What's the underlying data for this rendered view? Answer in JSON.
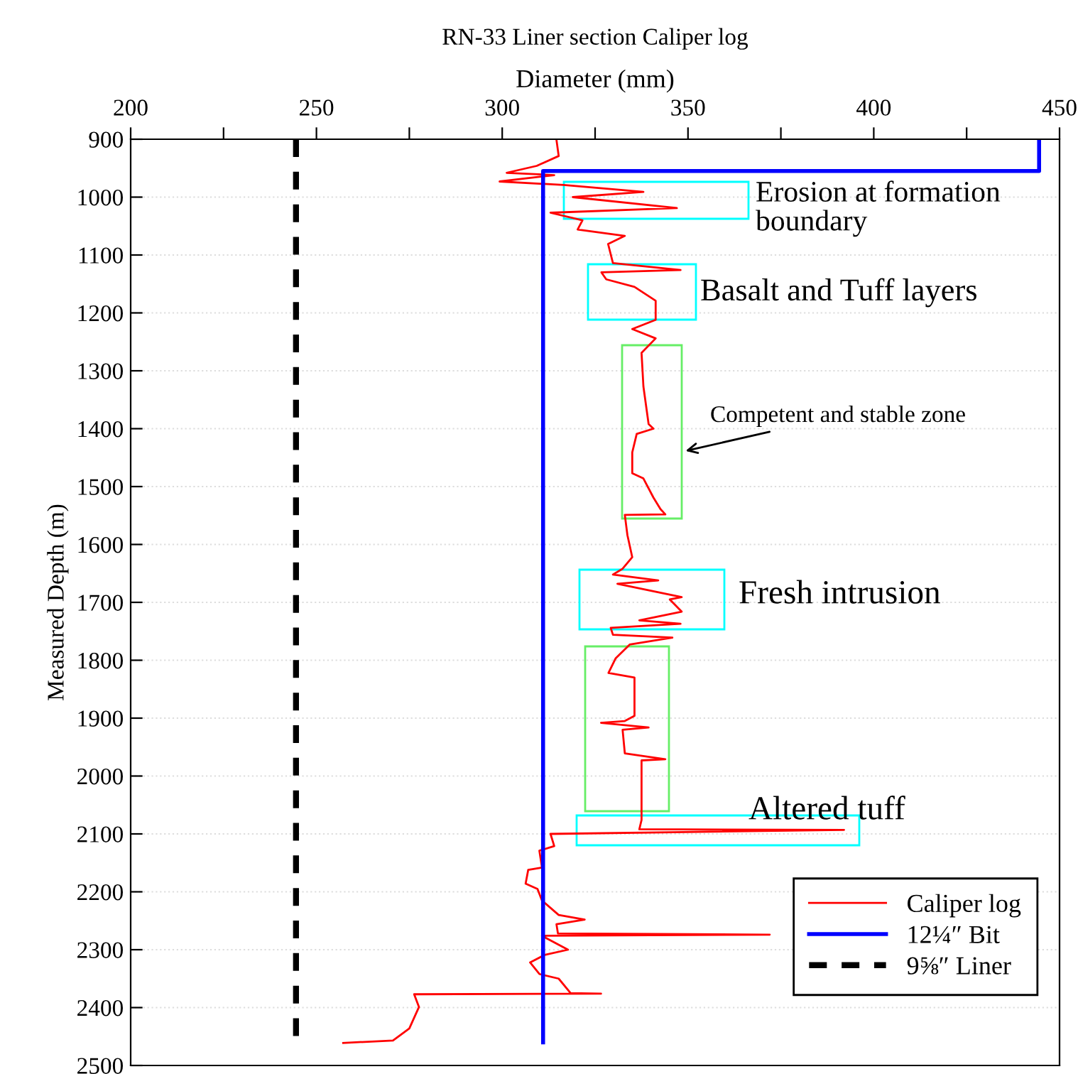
{
  "chart_data": {
    "type": "line",
    "title": "RN-33 Liner section Caliper log",
    "xlabel": "Diameter (mm)",
    "ylabel": "Measured Depth (m)",
    "xlim": [
      200,
      450
    ],
    "xticks": [
      200,
      {
        "value": 225,
        "label": null
      },
      250,
      {
        "value": 275,
        "label": null
      },
      300,
      {
        "value": 325,
        "label": null
      },
      350,
      {
        "value": 375,
        "label": null
      },
      400,
      {
        "value": 425,
        "label": null
      },
      450
    ],
    "ylim": [
      2500,
      900
    ],
    "yticks": [
      900,
      1000,
      1100,
      1200,
      1300,
      1400,
      1500,
      1600,
      1700,
      1800,
      1900,
      2000,
      2100,
      2200,
      2300,
      2400,
      2500
    ],
    "grid": "y",
    "legend": "bottom right",
    "series": [
      {
        "name": "Caliper log",
        "color": "#ff0000",
        "line_style": "solid",
        "x": [
          314.6,
          315.2,
          309.3,
          301.2,
          314,
          299.3,
          316.5,
          338,
          319,
          347,
          313,
          321.6,
          320.3,
          333,
          328.5,
          329.8,
          348,
          326.7,
          328,
          335.6,
          341.3,
          341.3,
          335,
          341.3,
          337.5,
          338,
          339.4,
          340.7,
          336.2,
          335,
          335,
          338,
          340.7,
          342.6,
          343.9,
          333,
          333.7,
          335,
          332.4,
          329.8,
          342,
          331,
          348.3,
          345.1,
          348.3,
          336.9,
          348,
          329.2,
          329.8,
          345.8,
          334.3,
          330.5,
          328.6,
          335.6,
          335.6,
          333,
          326.6,
          339.4,
          332.4,
          333,
          343.9,
          337.5,
          337.5,
          336.9,
          392,
          313,
          314,
          310,
          310.7,
          307,
          306.3,
          309.5,
          310.7,
          315.2,
          322.2,
          314.6,
          315,
          372,
          310.7,
          317.7,
          311.4,
          307.5,
          310,
          315.2,
          318.4,
          326.6,
          276.3,
          277.6,
          275,
          270.6,
          257.2
        ],
        "values": [
          901,
          929,
          946,
          958,
          962,
          973,
          979,
          991,
          1000,
          1019,
          1027,
          1040,
          1056,
          1067,
          1081,
          1114,
          1126,
          1130,
          1142,
          1155,
          1179,
          1212,
          1228,
          1244,
          1269,
          1327,
          1392,
          1400,
          1409,
          1441,
          1477,
          1486,
          1519,
          1539,
          1548,
          1549,
          1584,
          1622,
          1642,
          1652,
          1662,
          1668,
          1691,
          1695,
          1716,
          1731,
          1737,
          1744,
          1756,
          1761,
          1773,
          1797,
          1822,
          1830,
          1896,
          1905,
          1908,
          1916,
          1920,
          1961,
          1971,
          1973,
          2076,
          2092,
          2093,
          2100,
          2121,
          2129,
          2158,
          2162,
          2186,
          2195,
          2215,
          2240,
          2248,
          2256,
          2272,
          2274,
          2276,
          2300,
          2309,
          2322,
          2342,
          2350,
          2375,
          2376,
          2377,
          2399,
          2436,
          2457,
          2461
        ]
      },
      {
        "name": "12¼″ Bit",
        "color": "#0000ff",
        "line_style": "solid",
        "x": [
          444.5,
          444.5,
          311,
          311
        ],
        "values": [
          900,
          955,
          955,
          2460
        ]
      },
      {
        "name": "9⅝″ Liner",
        "color": "#000000",
        "line_style": "dashed",
        "x": [
          244.5,
          244.5
        ],
        "values": [
          900,
          2460
        ]
      }
    ],
    "annotations": [
      "Erosion at formation\nboundary",
      "Basalt and Tuff layers",
      "Competent and stable zone",
      "Fresh intrusion",
      "Altered tuff"
    ]
  }
}
